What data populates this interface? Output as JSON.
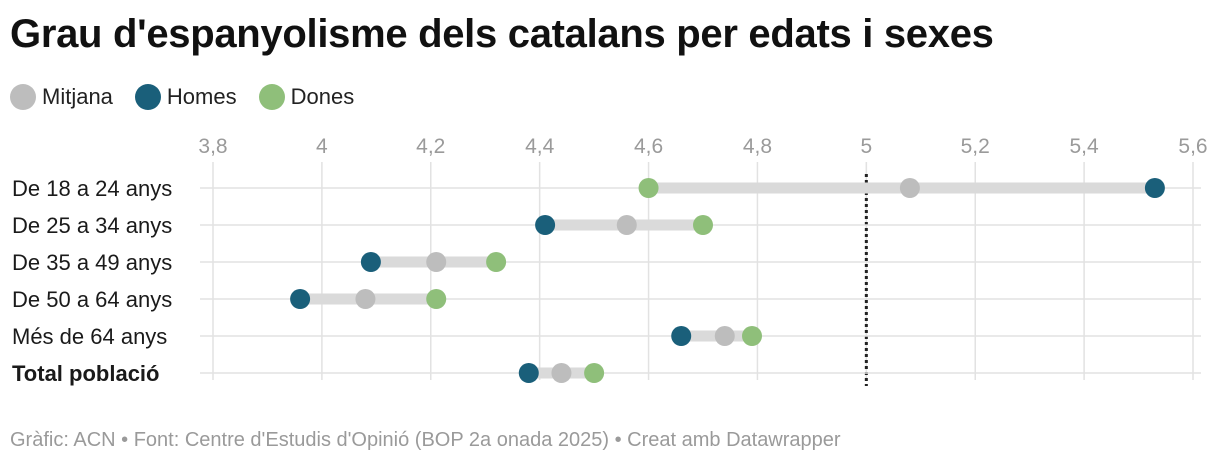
{
  "chart_data": {
    "type": "dumbbell",
    "title": "Grau d'espanyolisme dels catalans per edats i sexes",
    "series": [
      {
        "name": "Mitjana",
        "color": "#bdbdbd",
        "values": [
          5.08,
          4.56,
          4.21,
          4.08,
          4.74,
          4.44
        ]
      },
      {
        "name": "Homes",
        "color": "#1a5f7a",
        "values": [
          5.53,
          4.41,
          4.09,
          3.96,
          4.66,
          4.38
        ]
      },
      {
        "name": "Dones",
        "color": "#8fbf7a",
        "values": [
          4.6,
          4.7,
          4.32,
          4.21,
          4.79,
          4.5
        ]
      }
    ],
    "categories": [
      "De 18 a 24 anys",
      "De 25 a 34 anys",
      "De 35 a 49 anys",
      "De 50 a 64 anys",
      "Més de 64 anys",
      "Total població"
    ],
    "bold_categories": [
      "Total població"
    ],
    "x_ticks": [
      "3,8",
      "4",
      "4,2",
      "4,4",
      "4,6",
      "4,8",
      "5",
      "5,2",
      "5,4",
      "5,6"
    ],
    "x_tick_values": [
      3.8,
      4.0,
      4.2,
      4.4,
      4.6,
      4.8,
      5.0,
      5.2,
      5.4,
      5.6
    ],
    "xlim": [
      3.8,
      5.6
    ],
    "reference_line": 5.0,
    "legend_position": "top-left"
  },
  "source_text": "Gràfic: ACN • Font: Centre d'Estudis d'Opinió (BOP 2a onada 2025) • Creat amb Datawrapper"
}
